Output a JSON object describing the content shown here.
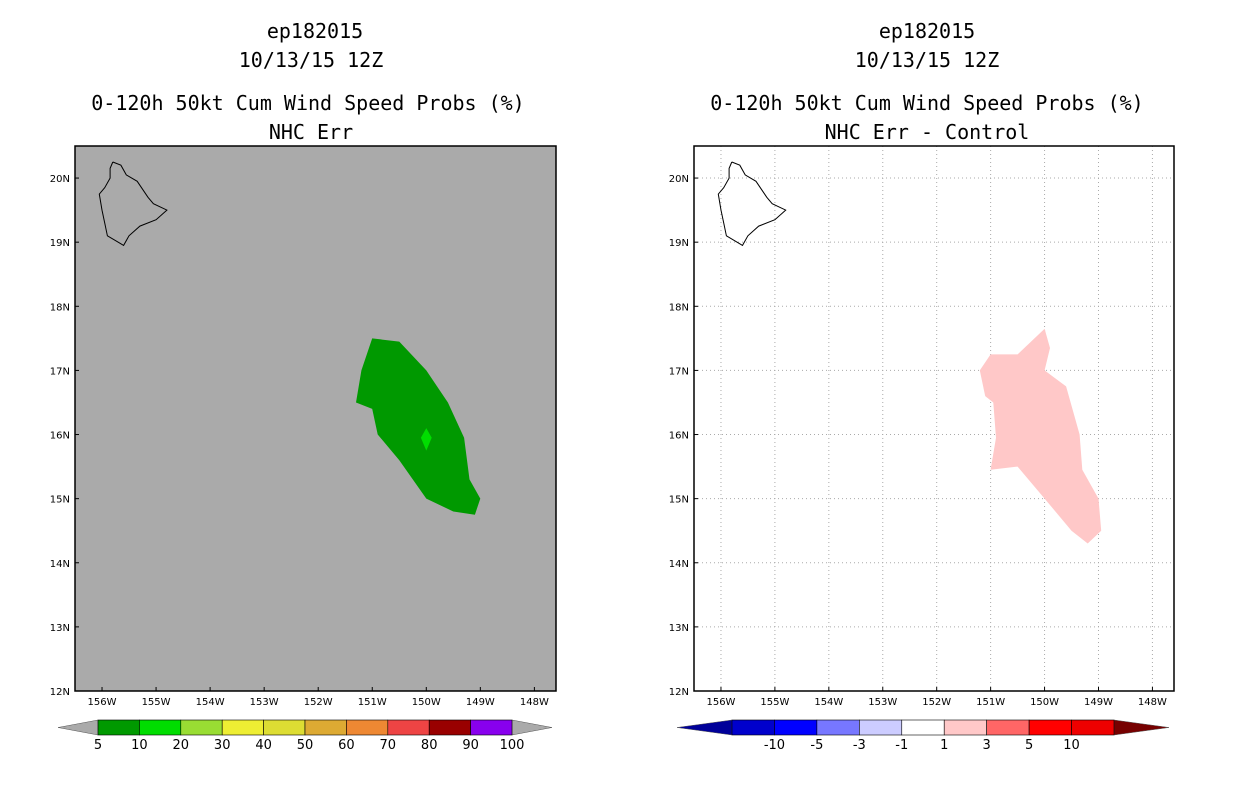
{
  "chart_data": [
    {
      "type": "map-contour",
      "title_lines": [
        "ep182015",
        "10/13/15 12Z",
        "0-120h 50kt Cum Wind Speed Probs (%)",
        "NHC Err"
      ],
      "background": "#aaaaaa",
      "grid": false,
      "lon_range": [
        -156.5,
        -147.6
      ],
      "lat_range": [
        12,
        20.5
      ],
      "x_tick_values": [
        -156,
        -155,
        -154,
        -153,
        -152,
        -151,
        -150,
        -149,
        -148
      ],
      "x_tick_labels": [
        "156W",
        "155W",
        "154W",
        "153W",
        "152W",
        "151W",
        "150W",
        "149W",
        "148W"
      ],
      "y_tick_values": [
        12,
        13,
        14,
        15,
        16,
        17,
        18,
        19,
        20
      ],
      "y_tick_labels": [
        "12N",
        "13N",
        "14N",
        "15N",
        "16N",
        "17N",
        "18N",
        "19N",
        "20N"
      ],
      "coastline": [
        [
          -155.8,
          20.25
        ],
        [
          -155.65,
          20.2
        ],
        [
          -155.55,
          20.05
        ],
        [
          -155.35,
          19.95
        ],
        [
          -155.15,
          19.7
        ],
        [
          -155.05,
          19.6
        ],
        [
          -154.8,
          19.5
        ],
        [
          -155.0,
          19.35
        ],
        [
          -155.3,
          19.25
        ],
        [
          -155.5,
          19.1
        ],
        [
          -155.6,
          18.95
        ],
        [
          -155.7,
          19.0
        ],
        [
          -155.9,
          19.1
        ],
        [
          -155.95,
          19.3
        ],
        [
          -156.0,
          19.5
        ],
        [
          -156.05,
          19.75
        ],
        [
          -155.95,
          19.85
        ],
        [
          -155.85,
          20.0
        ],
        [
          -155.85,
          20.15
        ],
        [
          -155.8,
          20.25
        ]
      ],
      "regions": [
        {
          "level": "5-10",
          "color": "#009900",
          "polygon": [
            [
              -151.0,
              17.5
            ],
            [
              -150.5,
              17.45
            ],
            [
              -150.0,
              17.0
            ],
            [
              -149.6,
              16.5
            ],
            [
              -149.3,
              15.95
            ],
            [
              -149.2,
              15.3
            ],
            [
              -149.0,
              15.0
            ],
            [
              -149.1,
              14.75
            ],
            [
              -149.5,
              14.8
            ],
            [
              -150.0,
              15.0
            ],
            [
              -150.5,
              15.6
            ],
            [
              -150.9,
              16.0
            ],
            [
              -151.0,
              16.4
            ],
            [
              -151.3,
              16.5
            ],
            [
              -151.2,
              17.0
            ],
            [
              -151.0,
              17.5
            ]
          ]
        },
        {
          "level": "10-20",
          "color": "#00dd00",
          "polygon": [
            [
              -150.0,
              16.1
            ],
            [
              -149.9,
              15.95
            ],
            [
              -150.0,
              15.75
            ],
            [
              -150.1,
              15.95
            ],
            [
              -150.0,
              16.1
            ]
          ]
        }
      ],
      "colorbar": {
        "labels": [
          "5",
          "10",
          "20",
          "30",
          "40",
          "50",
          "60",
          "70",
          "80",
          "90",
          "100"
        ],
        "under_color": "#aaaaaa",
        "over_color": "#aaaaaa",
        "colors": [
          "#009900",
          "#00dd00",
          "#99dd33",
          "#eeee33",
          "#dddd33",
          "#ddaa33",
          "#ee8833",
          "#ee4444",
          "#990000",
          "#8800ee"
        ]
      }
    },
    {
      "type": "map-contour",
      "title_lines": [
        "ep182015",
        "10/13/15 12Z",
        "0-120h 50kt Cum Wind Speed Probs (%)",
        "NHC Err - Control"
      ],
      "background": "#ffffff",
      "grid": true,
      "lon_range": [
        -156.5,
        -147.6
      ],
      "lat_range": [
        12,
        20.5
      ],
      "x_tick_values": [
        -156,
        -155,
        -154,
        -153,
        -152,
        -151,
        -150,
        -149,
        -148
      ],
      "x_tick_labels": [
        "156W",
        "155W",
        "154W",
        "153W",
        "152W",
        "151W",
        "150W",
        "149W",
        "148W"
      ],
      "y_tick_values": [
        12,
        13,
        14,
        15,
        16,
        17,
        18,
        19,
        20
      ],
      "y_tick_labels": [
        "12N",
        "13N",
        "14N",
        "15N",
        "16N",
        "17N",
        "18N",
        "19N",
        "20N"
      ],
      "coastline": [
        [
          -155.8,
          20.25
        ],
        [
          -155.65,
          20.2
        ],
        [
          -155.55,
          20.05
        ],
        [
          -155.35,
          19.95
        ],
        [
          -155.15,
          19.7
        ],
        [
          -155.05,
          19.6
        ],
        [
          -154.8,
          19.5
        ],
        [
          -155.0,
          19.35
        ],
        [
          -155.3,
          19.25
        ],
        [
          -155.5,
          19.1
        ],
        [
          -155.6,
          18.95
        ],
        [
          -155.7,
          19.0
        ],
        [
          -155.9,
          19.1
        ],
        [
          -155.95,
          19.3
        ],
        [
          -156.0,
          19.5
        ],
        [
          -156.05,
          19.75
        ],
        [
          -155.95,
          19.85
        ],
        [
          -155.85,
          20.0
        ],
        [
          -155.85,
          20.15
        ],
        [
          -155.8,
          20.25
        ]
      ],
      "regions": [
        {
          "level": "1-3",
          "color": "#ffc8c8",
          "polygon": [
            [
              -150.0,
              17.65
            ],
            [
              -149.9,
              17.35
            ],
            [
              -150.0,
              17.0
            ],
            [
              -149.6,
              16.75
            ],
            [
              -149.35,
              16.0
            ],
            [
              -149.3,
              15.45
            ],
            [
              -149.0,
              15.0
            ],
            [
              -148.95,
              14.5
            ],
            [
              -149.2,
              14.3
            ],
            [
              -149.5,
              14.5
            ],
            [
              -150.0,
              15.0
            ],
            [
              -150.5,
              15.5
            ],
            [
              -151.0,
              15.45
            ],
            [
              -150.9,
              15.95
            ],
            [
              -150.95,
              16.5
            ],
            [
              -151.1,
              16.6
            ],
            [
              -151.2,
              17.0
            ],
            [
              -151.0,
              17.25
            ],
            [
              -150.5,
              17.25
            ],
            [
              -150.0,
              17.65
            ]
          ]
        }
      ],
      "colorbar": {
        "labels": [
          "-10",
          "-5",
          "-3",
          "-1",
          "1",
          "3",
          "5",
          "10"
        ],
        "under_color": "#000099",
        "over_color": "#770000",
        "colors": [
          "#0000cc",
          "#0000ff",
          "#7777ff",
          "#ccccff",
          "#ffffff",
          "#ffc8c8",
          "#ff6666",
          "#ff0000",
          "#ee0000"
        ]
      }
    }
  ]
}
